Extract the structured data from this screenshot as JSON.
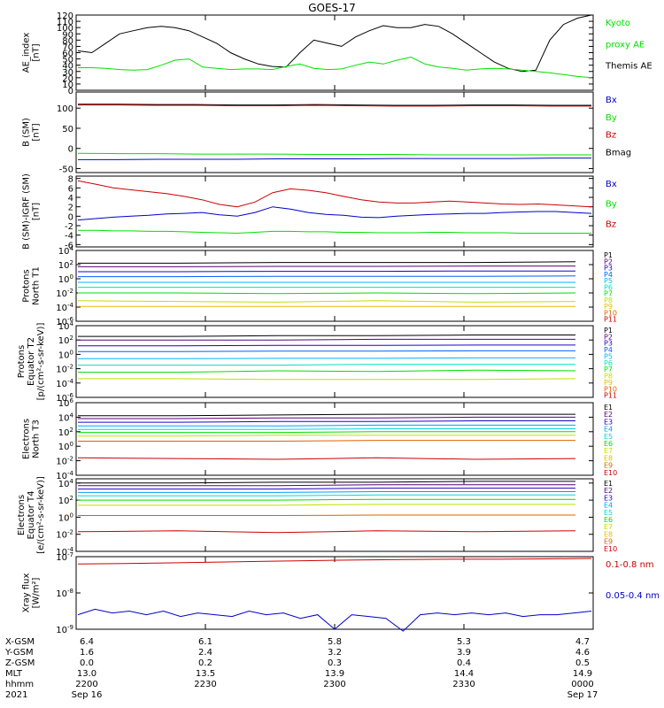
{
  "title": "GOES-17",
  "colors": {
    "black": "#000000",
    "green": "#00e000",
    "blue": "#0000cc",
    "red": "#cc0000"
  },
  "chart_data": [
    {
      "id": "ae",
      "type": "line",
      "ylabel": "AE_index\n[nT]",
      "scale": "linear",
      "ylim": [
        0,
        120
      ],
      "ticks": [
        0,
        10,
        20,
        30,
        40,
        50,
        60,
        70,
        80,
        90,
        100,
        110,
        120
      ],
      "tick_labels": [
        "0",
        "10",
        "20",
        "30",
        "40",
        "50",
        "60",
        "70",
        "80",
        "90",
        "100",
        "110",
        "120"
      ],
      "legend": [
        {
          "text": "Kyoto",
          "color": "#00e000"
        },
        {
          "text": "proxy AE",
          "color": "#00e000"
        },
        {
          "text": "Themis AE",
          "color": "#000000"
        }
      ],
      "series": [
        {
          "color": "#000000",
          "values": [
            63,
            60,
            75,
            90,
            95,
            100,
            102,
            100,
            95,
            85,
            75,
            60,
            50,
            42,
            38,
            37,
            60,
            80,
            75,
            70,
            85,
            95,
            103,
            100,
            100,
            105,
            102,
            90,
            75,
            60,
            45,
            35,
            30,
            32,
            80,
            105,
            115,
            120
          ]
        },
        {
          "color": "#00e000",
          "values": [
            36,
            36,
            35,
            33,
            32,
            33,
            40,
            48,
            50,
            37,
            35,
            33,
            34,
            34,
            33,
            38,
            42,
            35,
            33,
            34,
            40,
            45,
            42,
            48,
            53,
            42,
            37,
            35,
            32,
            34,
            35,
            34,
            32,
            30,
            28,
            25,
            22,
            20
          ]
        }
      ]
    },
    {
      "id": "bsm",
      "type": "line",
      "ylabel": "B (SM)\n[nT]",
      "scale": "linear",
      "ylim": [
        -60,
        140
      ],
      "ticks": [
        -50,
        0,
        50,
        100
      ],
      "tick_labels": [
        "-50",
        "0",
        "50",
        "100"
      ],
      "legend": [
        {
          "text": "Bx",
          "color": "#0000cc"
        },
        {
          "text": "By",
          "color": "#00e000"
        },
        {
          "text": "Bz",
          "color": "#cc0000"
        },
        {
          "text": "Bmag",
          "color": "#000000"
        }
      ],
      "series": [
        {
          "color": "#000000",
          "values": [
            110,
            110,
            109,
            109,
            108,
            108,
            109,
            108,
            107,
            107,
            108,
            108,
            107,
            107
          ]
        },
        {
          "color": "#cc0000",
          "values": [
            108,
            108,
            107,
            107,
            106,
            106,
            107,
            106,
            105,
            105,
            106,
            106,
            105,
            105
          ]
        },
        {
          "color": "#00e000",
          "values": [
            -12,
            -13,
            -13,
            -14,
            -14,
            -14,
            -15,
            -15,
            -15,
            -16,
            -16,
            -16,
            -16,
            -16
          ]
        },
        {
          "color": "#0000cc",
          "values": [
            -28,
            -28,
            -27,
            -27,
            -27,
            -26,
            -26,
            -26,
            -25,
            -25,
            -25,
            -25,
            -24,
            -24
          ]
        }
      ]
    },
    {
      "id": "bigrf",
      "type": "line",
      "ylabel": "B (SM)-IGRF (SM)\n[nT]",
      "scale": "linear",
      "ylim": [
        -6.5,
        8.5
      ],
      "ticks": [
        -6,
        -4,
        -2,
        0,
        2,
        4,
        6,
        8
      ],
      "tick_labels": [
        "-6",
        "-4",
        "-2",
        "0",
        "2",
        "4",
        "6",
        "8"
      ],
      "legend": [
        {
          "text": "Bx",
          "color": "#0000cc"
        },
        {
          "text": "By",
          "color": "#00e000"
        },
        {
          "text": "Bz",
          "color": "#cc0000"
        }
      ],
      "series": [
        {
          "color": "#cc0000",
          "values": [
            7.5,
            6.8,
            6.0,
            5.6,
            5.2,
            4.8,
            4.2,
            3.5,
            2.5,
            2.0,
            3.0,
            5.0,
            5.8,
            5.5,
            5.0,
            4.2,
            3.5,
            3.0,
            2.8,
            2.8,
            3.0,
            3.2,
            3.0,
            2.8,
            2.6,
            2.5,
            2.6,
            2.4,
            2.2,
            2.0
          ]
        },
        {
          "color": "#0000cc",
          "values": [
            -0.8,
            -0.5,
            -0.2,
            0.0,
            0.2,
            0.5,
            0.6,
            0.8,
            0.3,
            0.0,
            0.8,
            2.0,
            1.5,
            0.8,
            0.4,
            0.2,
            -0.2,
            -0.3,
            0.0,
            0.2,
            0.4,
            0.5,
            0.6,
            0.6,
            0.8,
            0.9,
            1.0,
            1.0,
            0.8,
            0.6
          ]
        },
        {
          "color": "#00e000",
          "values": [
            -3.0,
            -3.0,
            -3.1,
            -3.1,
            -3.2,
            -3.2,
            -3.3,
            -3.4,
            -3.5,
            -3.6,
            -3.4,
            -3.2,
            -3.2,
            -3.3,
            -3.3,
            -3.4,
            -3.4,
            -3.5,
            -3.5,
            -3.5,
            -3.4,
            -3.4,
            -3.5,
            -3.5,
            -3.5,
            -3.6,
            -3.6,
            -3.6,
            -3.6,
            -3.6
          ]
        }
      ]
    },
    {
      "id": "protons_t1",
      "type": "line",
      "ylabel": "Protons\nNorth T1",
      "scale": "log",
      "ylim": [
        -6,
        4
      ],
      "ticks": [
        -6,
        -4,
        -2,
        0,
        2,
        4
      ],
      "tick_labels": [
        "10^-6",
        "10^-4",
        "10^-2",
        "10^0",
        "10^2",
        "10^4"
      ],
      "legend_items": [
        "P1",
        "P2",
        "P3",
        "P4",
        "P5",
        "P6",
        "P7",
        "P8",
        "P9",
        "P10",
        "P11"
      ],
      "legend_colors": [
        "#000000",
        "#5a007a",
        "#2000c8",
        "#0060ff",
        "#00b4ff",
        "#00e0c0",
        "#00e000",
        "#c0e000",
        "#e0c000",
        "#e06000",
        "#cc0000"
      ],
      "series": [
        {
          "color": "#000000",
          "values": [
            2.2,
            2.2,
            2.3,
            2.3,
            2.3,
            2.4
          ]
        },
        {
          "color": "#5a007a",
          "values": [
            1.7,
            1.7,
            1.75,
            1.75,
            1.8,
            1.8
          ]
        },
        {
          "color": "#2000c8",
          "values": [
            1.0,
            1.0,
            1.05,
            1.05,
            1.1,
            1.1
          ]
        },
        {
          "color": "#0060ff",
          "values": [
            0.3,
            0.3,
            0.35,
            0.35,
            0.35,
            0.4
          ]
        },
        {
          "color": "#00b4ff",
          "values": [
            -0.5,
            -0.5,
            -0.5,
            -0.5,
            -0.5,
            -0.5
          ]
        },
        {
          "color": "#00e0c0",
          "values": [
            -1.2,
            -1.2,
            -1.2,
            -1.2,
            -1.2,
            -1.2
          ]
        },
        {
          "color": "#00e000",
          "values": [
            -2.0,
            -2.0,
            -2.1,
            -2.0,
            -2.1,
            -2.0
          ]
        },
        {
          "color": "#c0e000",
          "values": [
            -3.1,
            -3.2,
            -3.3,
            -3.1,
            -3.3,
            -3.2
          ]
        },
        {
          "color": "#e0c000",
          "values": [
            -3.9,
            -3.9,
            -3.9,
            -3.9,
            -3.9,
            -3.9
          ]
        }
      ]
    },
    {
      "id": "protons_t2",
      "type": "line",
      "ylabel": "Protons\nEquator T2\n[p/(cm²-s-sr-keV)]",
      "scale": "log",
      "ylim": [
        -6,
        4
      ],
      "ticks": [
        -6,
        -4,
        -2,
        0,
        2,
        4
      ],
      "tick_labels": [
        "10^-6",
        "10^-4",
        "10^-2",
        "10^0",
        "10^2",
        "10^4"
      ],
      "legend_items": [
        "P1",
        "P2",
        "P3",
        "P4",
        "P5",
        "P6",
        "P7",
        "P8",
        "P9",
        "P10",
        "P11"
      ],
      "legend_colors": [
        "#000000",
        "#5a007a",
        "#2000c8",
        "#0060ff",
        "#00b4ff",
        "#00e0c0",
        "#00e000",
        "#c0e000",
        "#e0c000",
        "#e06000",
        "#cc0000"
      ],
      "series": [
        {
          "color": "#000000",
          "values": [
            2.5,
            2.5,
            2.6,
            2.6,
            2.7,
            2.7
          ]
        },
        {
          "color": "#5a007a",
          "values": [
            2.0,
            2.0,
            2.0,
            2.1,
            2.1,
            2.1
          ]
        },
        {
          "color": "#2000c8",
          "values": [
            1.2,
            1.2,
            1.25,
            1.25,
            1.3,
            1.3
          ]
        },
        {
          "color": "#0060ff",
          "values": [
            0.4,
            0.4,
            0.45,
            0.45,
            0.5,
            0.5
          ]
        },
        {
          "color": "#00b4ff",
          "values": [
            -0.6,
            -0.6,
            -0.55,
            -0.55,
            -0.5,
            -0.5
          ]
        },
        {
          "color": "#00e0c0",
          "values": [
            -1.5,
            -1.5,
            -1.5,
            -1.4,
            -1.4,
            -1.4
          ]
        },
        {
          "color": "#00e000",
          "values": [
            -2.5,
            -2.5,
            -2.3,
            -2.4,
            -2.2,
            -2.3
          ]
        },
        {
          "color": "#c0e000",
          "values": [
            -3.4,
            -3.4,
            -3.5,
            -3.5,
            -3.5,
            -3.4
          ]
        }
      ]
    },
    {
      "id": "electrons_t3",
      "type": "line",
      "ylabel": "Electrons\nNorth T3",
      "scale": "log",
      "ylim": [
        -4,
        6
      ],
      "ticks": [
        -4,
        -2,
        0,
        2,
        4,
        6
      ],
      "tick_labels": [
        "10^-4",
        "10^-2",
        "10^0",
        "10^2",
        "10^4",
        "10^6"
      ],
      "legend_items": [
        "E1",
        "E2",
        "E3",
        "E4",
        "E5",
        "E6",
        "E7",
        "E8",
        "E9",
        "E10"
      ],
      "legend_colors": [
        "#000000",
        "#5a007a",
        "#2000c8",
        "#00a0ff",
        "#00d8d8",
        "#00e000",
        "#c0e000",
        "#e0c000",
        "#e06000",
        "#cc0000"
      ],
      "series": [
        {
          "color": "#000000",
          "values": [
            4.2,
            4.2,
            4.3,
            4.4,
            4.4,
            4.4
          ]
        },
        {
          "color": "#5a007a",
          "values": [
            3.8,
            3.8,
            3.9,
            3.9,
            4.0,
            4.0
          ]
        },
        {
          "color": "#2000c8",
          "values": [
            3.3,
            3.3,
            3.4,
            3.4,
            3.5,
            3.5
          ]
        },
        {
          "color": "#00a0ff",
          "values": [
            2.8,
            2.8,
            2.8,
            2.9,
            2.9,
            2.9
          ]
        },
        {
          "color": "#00d8d8",
          "values": [
            2.3,
            2.3,
            2.3,
            2.4,
            2.4,
            2.4
          ]
        },
        {
          "color": "#00e000",
          "values": [
            1.9,
            1.9,
            1.9,
            2.0,
            2.0,
            2.0
          ]
        },
        {
          "color": "#c0e000",
          "values": [
            1.4,
            1.4,
            1.5,
            1.5,
            1.5,
            1.5
          ]
        },
        {
          "color": "#e06000",
          "values": [
            0.7,
            0.7,
            0.7,
            0.8,
            0.8,
            0.8
          ]
        },
        {
          "color": "#cc0000",
          "values": [
            -1.6,
            -1.7,
            -1.8,
            -1.6,
            -1.8,
            -1.7
          ]
        }
      ]
    },
    {
      "id": "electrons_t4",
      "type": "line",
      "ylabel": "Electrons\nEquator T4\n[e/(cm²-s-sr-keV)]",
      "scale": "log",
      "ylim": [
        -4,
        4.5
      ],
      "ticks": [
        -4,
        -2,
        0,
        2,
        4
      ],
      "tick_labels": [
        "10^-4",
        "10^-2",
        "10^0",
        "10^2",
        "10^4"
      ],
      "legend_items": [
        "E1",
        "E2",
        "E3",
        "E4",
        "E5",
        "E6",
        "E7",
        "E8",
        "E9",
        "E10"
      ],
      "legend_colors": [
        "#000000",
        "#5a007a",
        "#2000c8",
        "#00a0ff",
        "#00d8d8",
        "#00e000",
        "#c0e000",
        "#e0c000",
        "#e06000",
        "#cc0000"
      ],
      "series": [
        {
          "color": "#000000",
          "values": [
            4.0,
            4.0,
            4.1,
            4.1,
            4.2,
            4.2
          ]
        },
        {
          "color": "#5a007a",
          "values": [
            3.7,
            3.7,
            3.7,
            3.8,
            3.8,
            3.8
          ]
        },
        {
          "color": "#2000c8",
          "values": [
            3.3,
            3.3,
            3.3,
            3.4,
            3.4,
            3.4
          ]
        },
        {
          "color": "#00a0ff",
          "values": [
            2.9,
            2.9,
            2.9,
            3.0,
            3.0,
            3.0
          ]
        },
        {
          "color": "#00d8d8",
          "values": [
            2.5,
            2.5,
            2.5,
            2.6,
            2.6,
            2.6
          ]
        },
        {
          "color": "#00e000",
          "values": [
            2.0,
            2.0,
            2.0,
            2.1,
            2.1,
            2.1
          ]
        },
        {
          "color": "#c0e000",
          "values": [
            1.4,
            1.4,
            1.4,
            1.5,
            1.5,
            1.5
          ]
        },
        {
          "color": "#e06000",
          "values": [
            0.2,
            0.2,
            0.2,
            0.25,
            0.25,
            0.25
          ]
        },
        {
          "color": "#cc0000",
          "values": [
            -1.7,
            -1.6,
            -1.8,
            -1.6,
            -1.7,
            -1.6
          ]
        }
      ]
    },
    {
      "id": "xray",
      "type": "line",
      "ylabel": "Xray flux\n[W/m²]",
      "scale": "log",
      "ylim": [
        -9,
        -7
      ],
      "ticks": [
        -9,
        -8,
        -7
      ],
      "tick_labels": [
        "10^-9",
        "10^-8",
        "10^-7"
      ],
      "legend": [
        {
          "text": "0.1-0.8 nm",
          "color": "#cc0000"
        },
        {
          "text": "0.05-0.4 nm",
          "color": "#0000cc"
        }
      ],
      "series": [
        {
          "color": "#cc0000",
          "values": [
            -7.2,
            -7.19,
            -7.17,
            -7.15,
            -7.13,
            -7.11,
            -7.09,
            -7.08,
            -7.07,
            -7.07,
            -7.06,
            -7.05
          ]
        },
        {
          "color": "#0000cc",
          "values": [
            -8.6,
            -8.45,
            -8.55,
            -8.5,
            -8.6,
            -8.5,
            -8.65,
            -8.55,
            -8.6,
            -8.65,
            -8.5,
            -8.6,
            -8.55,
            -8.7,
            -8.6,
            -9.0,
            -8.6,
            -8.65,
            -8.7,
            -9.05,
            -8.6,
            -8.55,
            -8.6,
            -8.55,
            -8.6,
            -8.55,
            -8.65,
            -8.6,
            -8.6,
            -8.55,
            -8.5
          ]
        }
      ]
    }
  ],
  "ephemeris": {
    "rows": [
      {
        "label": "X-GSM",
        "values": [
          "6.4",
          "6.1",
          "5.8",
          "5.3",
          "4.7"
        ]
      },
      {
        "label": "Y-GSM",
        "values": [
          "1.6",
          "2.4",
          "3.2",
          "3.9",
          "4.6"
        ]
      },
      {
        "label": "Z-GSM",
        "values": [
          "0.0",
          "0.2",
          "0.3",
          "0.4",
          "0.5"
        ]
      },
      {
        "label": "MLT",
        "values": [
          "13.0",
          "13.5",
          "13.9",
          "14.4",
          "14.9"
        ]
      },
      {
        "label": "hhmm",
        "values": [
          "2200",
          "2230",
          "2300",
          "2330",
          "0000"
        ]
      },
      {
        "label": "2021",
        "values": [
          "Sep 16",
          "",
          "",
          "",
          "Sep 17"
        ]
      }
    ]
  }
}
